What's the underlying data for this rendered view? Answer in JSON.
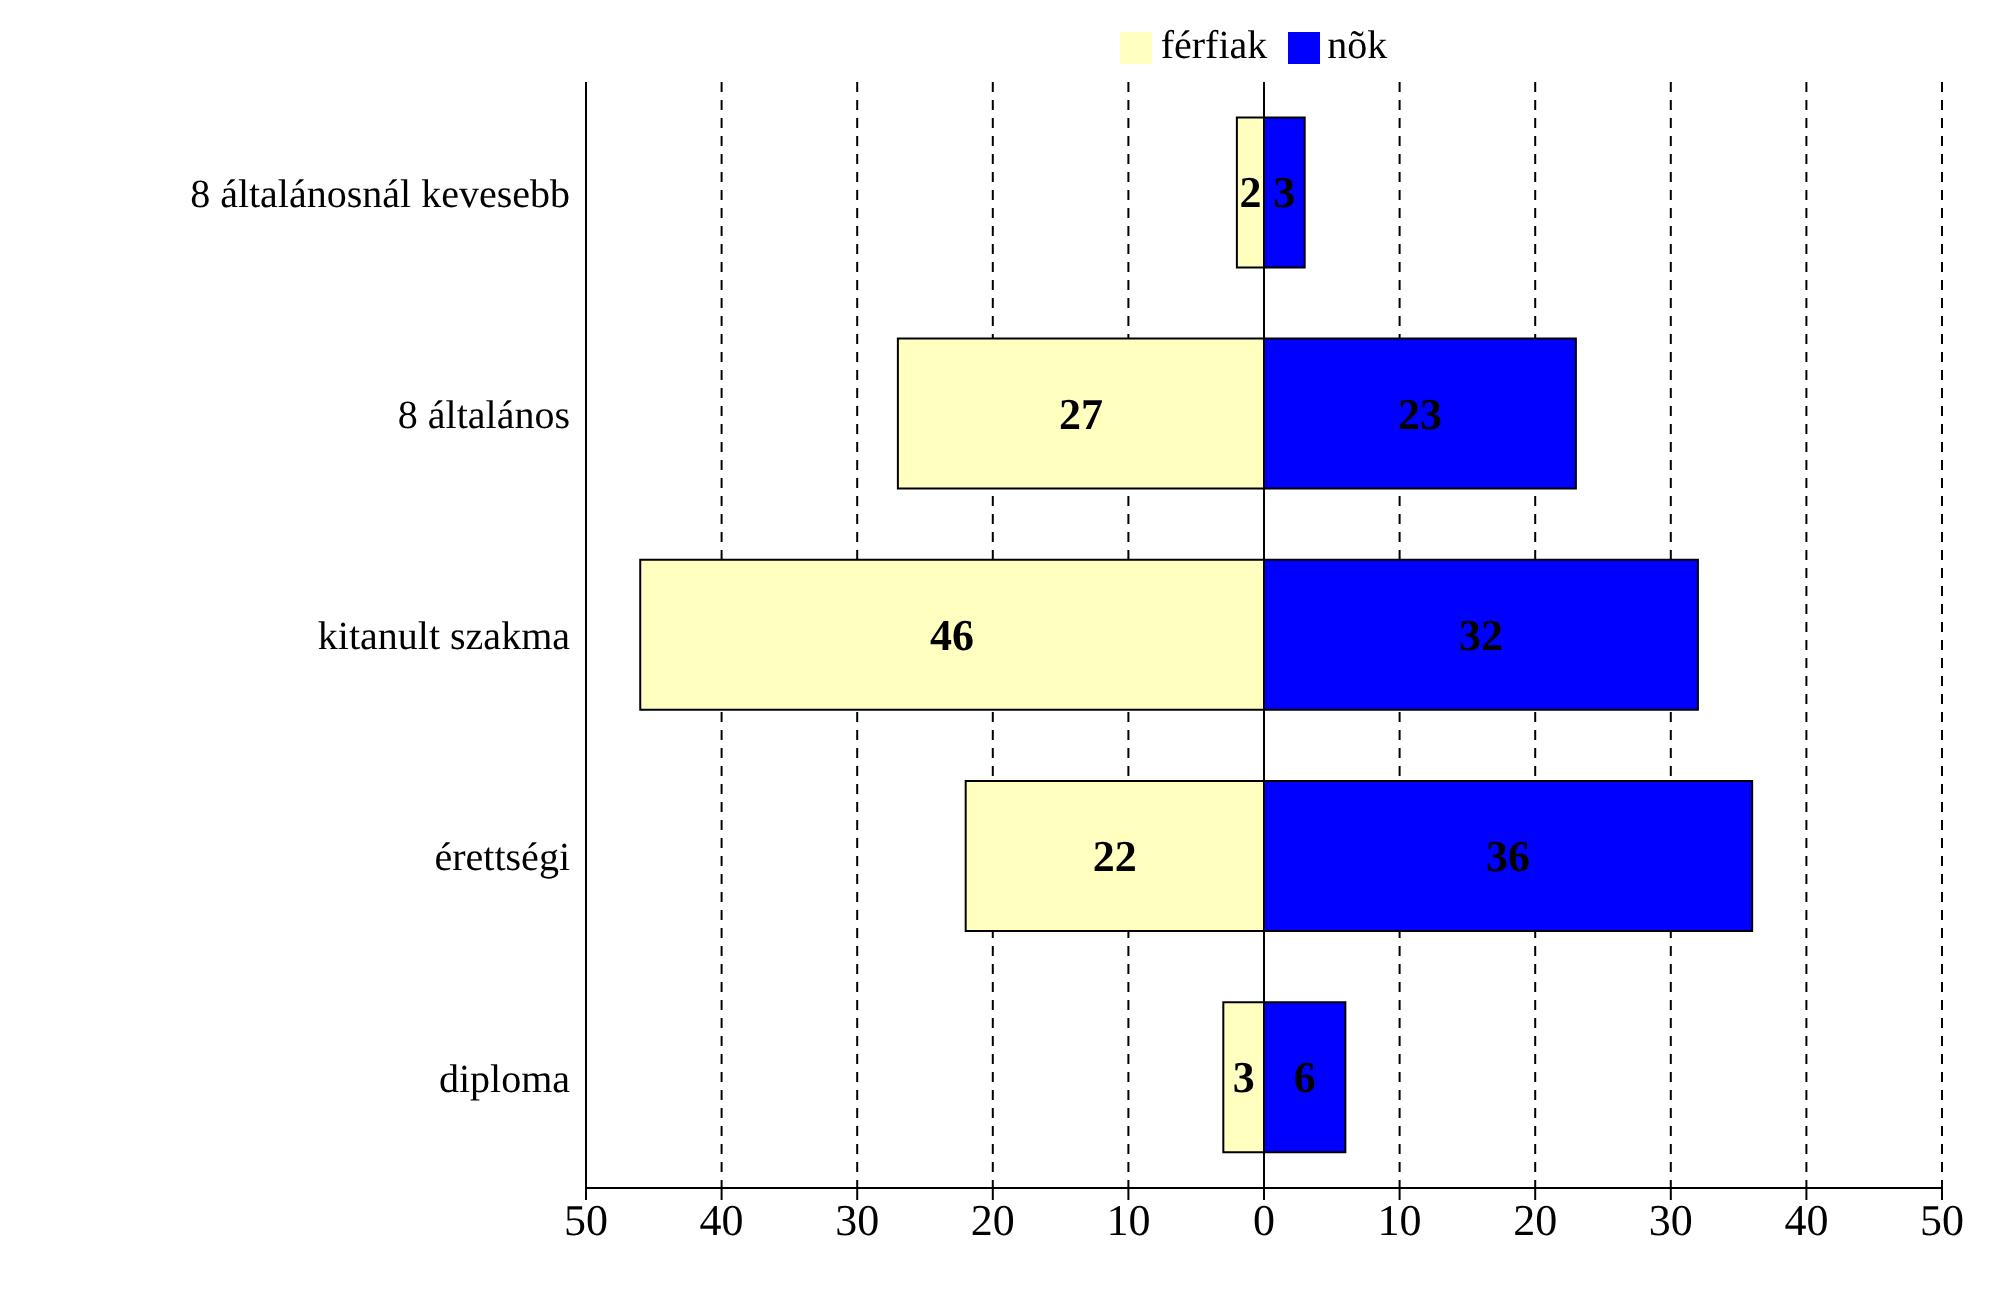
{
  "chart_data": {
    "type": "bar",
    "orientation": "horizontal",
    "categories": [
      "8 általánosnál kevesebb",
      "8 általános",
      "kitanult szakma",
      "érettségi",
      "diploma"
    ],
    "series": [
      {
        "name": "férfiak",
        "color": "#ffffc0",
        "values": [
          2,
          27,
          46,
          22,
          3
        ],
        "base": [
          -2,
          -27,
          -46,
          -22,
          -3
        ],
        "value_labels": [
          "2",
          "27",
          "46",
          "22",
          "3"
        ]
      },
      {
        "name": "nõk",
        "color": "#0000ff",
        "values": [
          3,
          23,
          32,
          36,
          6
        ],
        "value_labels": [
          "3",
          "23",
          "32",
          "36",
          "6"
        ]
      }
    ],
    "xlim": [
      -50,
      50
    ],
    "xticks": [
      {
        "value": -50,
        "label": "50"
      },
      {
        "value": -40,
        "label": "40"
      },
      {
        "value": -30,
        "label": "30"
      },
      {
        "value": -20,
        "label": "20"
      },
      {
        "value": -10,
        "label": "10"
      },
      0,
      10,
      20,
      30,
      40,
      50
    ],
    "grid": "x",
    "legend": "top"
  }
}
